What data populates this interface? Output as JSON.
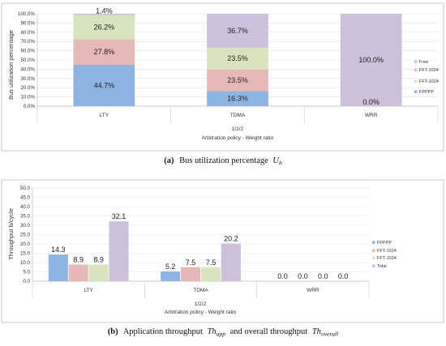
{
  "chart_data": [
    {
      "type": "bar",
      "stacked": true,
      "categories": [
        "LTY",
        "TDMA",
        "WRR"
      ],
      "series": [
        {
          "name": "FPPPP",
          "values": [
            44.7,
            16.3,
            0.0
          ]
        },
        {
          "name": "FFT-1024",
          "values": [
            27.8,
            23.5,
            0.0
          ]
        },
        {
          "name": "FFT-1024",
          "values": [
            26.2,
            23.5,
            0.0
          ]
        },
        {
          "name": "Free",
          "values": [
            1.4,
            36.7,
            100.0
          ]
        }
      ],
      "data_labels": [
        [
          "44.7%",
          "16.3%",
          ""
        ],
        [
          "27.8%",
          "23.5%",
          ""
        ],
        [
          "26.2%",
          "23.5%",
          "0.0%"
        ],
        [
          "1.4%",
          "36.7%",
          "100.0%"
        ]
      ],
      "legend_order": [
        "Free",
        "FFT-1024",
        "FFT-1024",
        "FPPPP"
      ],
      "colors": [
        "#8eb4e3",
        "#e6b9b8",
        "#d7e4bd",
        "#ccc0da"
      ],
      "yticks": [
        "0.0%",
        "10.0%",
        "20.0%",
        "30.0%",
        "40.0%",
        "50.0%",
        "60.0%",
        "70.0%",
        "80.0%",
        "90.0%",
        "100.0%"
      ],
      "ylim": [
        0,
        100
      ],
      "ylabel": "Bus utilization percentage",
      "xlabel_top": "1/2/2",
      "xlabel": "Arbitration policy - Weight ratio",
      "caption_tag": "(a)",
      "caption_text": "Bus utilization percentage",
      "caption_math": "U",
      "caption_math_sub": "b",
      "legend_position": "right"
    },
    {
      "type": "bar",
      "stacked": false,
      "categories": [
        "LTY",
        "TDMA",
        "WRR"
      ],
      "series": [
        {
          "name": "FPPPP",
          "values": [
            14.3,
            5.2,
            0.0
          ]
        },
        {
          "name": "FFT-1024",
          "values": [
            8.9,
            7.5,
            0.0
          ]
        },
        {
          "name": "FFT-1024",
          "values": [
            8.9,
            7.5,
            0.0
          ]
        },
        {
          "name": "Total",
          "values": [
            32.1,
            20.2,
            0.0
          ]
        }
      ],
      "data_labels": [
        [
          "14.3",
          "5.2",
          "0.0"
        ],
        [
          "8.9",
          "7.5",
          "0.0"
        ],
        [
          "8.9",
          "7.5",
          "0.0"
        ],
        [
          "32.1",
          "20.2",
          "0.0"
        ]
      ],
      "legend_order": [
        "FPPPP",
        "FFT-1024",
        "FFT-1024",
        "Total"
      ],
      "colors": [
        "#8eb4e3",
        "#e6b9b8",
        "#d7e4bd",
        "#ccc0da"
      ],
      "yticks": [
        "0.0",
        "5.0",
        "10.0",
        "15.0",
        "20.0",
        "25.0",
        "30.0",
        "35.0",
        "40.0",
        "45.0",
        "50.0"
      ],
      "ylim": [
        0,
        50
      ],
      "ylabel": "Throughput b/cycle",
      "xlabel_top": "1/2/2",
      "xlabel": "Arbitration policy - Weight ratio",
      "caption_tag": "(b)",
      "caption_text": "Application throughput",
      "caption_math": "Th",
      "caption_math_sub": "app",
      "caption_mid": "and overall throughput",
      "caption_math2": "Th",
      "caption_math2_sub": "overall",
      "legend_position": "right"
    }
  ]
}
